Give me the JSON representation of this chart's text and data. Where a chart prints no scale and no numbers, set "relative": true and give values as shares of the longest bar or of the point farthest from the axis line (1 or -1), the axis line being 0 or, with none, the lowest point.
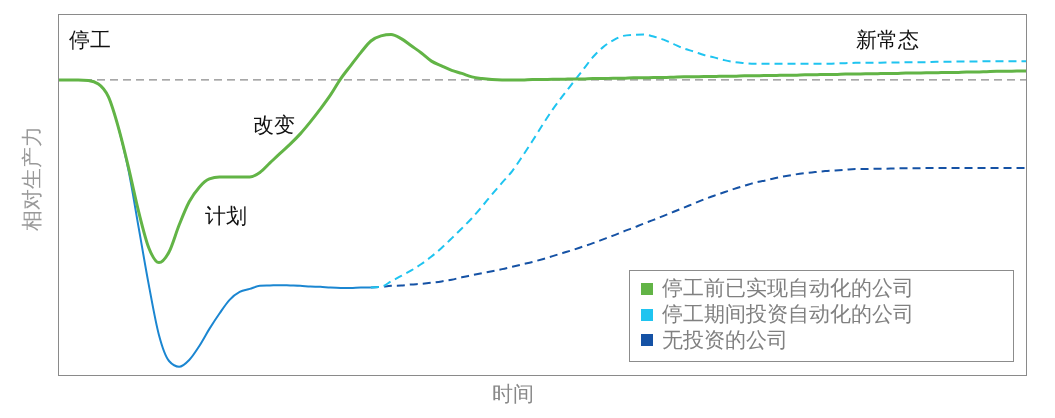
{
  "chart_data": {
    "type": "line",
    "relative": true,
    "xlabel": "时间",
    "ylabel": "相对生产力",
    "annotations": [
      "停工",
      "计划",
      "改变",
      "新常态"
    ],
    "categories": [
      null,
      null,
      null,
      null,
      null,
      null,
      null,
      null,
      null,
      null,
      null,
      null,
      null,
      null,
      null,
      null,
      null,
      null,
      null,
      null,
      null,
      null,
      null,
      null,
      null,
      null,
      null,
      null,
      null,
      null,
      null,
      null,
      null,
      null,
      null,
      null,
      null,
      null,
      null,
      null,
      null,
      null,
      null,
      null,
      null,
      null,
      null,
      null,
      null,
      null,
      null,
      null,
      null,
      null,
      null,
      null,
      null,
      null,
      null,
      null,
      null,
      null,
      null,
      null,
      null,
      null,
      null,
      null,
      null,
      null,
      null,
      null,
      null,
      null,
      null,
      null,
      null,
      null,
      null,
      null,
      null,
      null,
      null,
      null,
      null,
      null,
      null,
      null,
      null,
      null,
      null,
      null,
      null,
      null,
      null,
      null,
      null
    ],
    "series": [
      {
        "name": "停工前已实现自动化的公司",
        "color": "#62b446",
        "line_style": "solid",
        "values": [
          0.867,
          0.867,
          0.867,
          0.865,
          0.855,
          0.817,
          0.726,
          0.609,
          0.48,
          0.375,
          0.332,
          0.363,
          0.442,
          0.51,
          0.553,
          0.577,
          0.583,
          0.583,
          0.583,
          0.583,
          0.596,
          0.624,
          0.652,
          0.679,
          0.709,
          0.744,
          0.782,
          0.823,
          0.87,
          0.909,
          0.947,
          0.981,
          0.996,
          1.0,
          0.988,
          0.967,
          0.946,
          0.922,
          0.908,
          0.895,
          0.886,
          0.876,
          0.871,
          0.868,
          0.867,
          0.867,
          0.867,
          0.868,
          0.868,
          0.869,
          0.869,
          0.87,
          0.87,
          0.871,
          0.871,
          0.872,
          0.872,
          0.873,
          0.873,
          0.874,
          0.874,
          0.875,
          0.876,
          0.876,
          0.877,
          0.877,
          0.878,
          0.878,
          0.879,
          0.879,
          0.88,
          0.88,
          0.881,
          0.881,
          0.882,
          0.882,
          0.883,
          0.883,
          0.884,
          0.884,
          0.885,
          0.885,
          0.886,
          0.886,
          0.887,
          0.887,
          0.888,
          0.888,
          0.889,
          0.889,
          0.89,
          0.89,
          0.891,
          0.892,
          0.892,
          0.893,
          0.893
        ]
      },
      {
        "color": "#1b86d1",
        "line_style": "solid",
        "values": [
          null,
          null,
          null,
          null,
          null,
          null,
          0.726,
          0.6,
          0.433,
          0.266,
          0.12,
          0.044,
          0.027,
          0.047,
          0.088,
          0.138,
          0.183,
          0.223,
          0.246,
          0.255,
          0.264,
          0.265,
          0.266,
          0.265,
          0.264,
          0.262,
          0.261,
          0.259,
          0.258,
          0.258,
          0.259,
          0.259,
          null,
          null,
          null,
          null,
          null,
          null,
          null,
          null,
          null,
          null,
          null,
          null,
          null,
          null,
          null,
          null,
          null,
          null,
          null,
          null,
          null,
          null,
          null,
          null,
          null,
          null,
          null,
          null,
          null,
          null,
          null,
          null,
          null,
          null,
          null,
          null,
          null,
          null,
          null,
          null,
          null,
          null,
          null,
          null,
          null,
          null,
          null,
          null,
          null,
          null,
          null,
          null,
          null,
          null,
          null,
          null,
          null,
          null,
          null,
          null,
          null,
          null,
          null,
          null,
          null
        ]
      },
      {
        "name": "停工期间投资自动化的公司",
        "color": "#1fc4f0",
        "line_style": "dashed",
        "values": [
          null,
          null,
          null,
          null,
          null,
          null,
          null,
          null,
          null,
          null,
          null,
          null,
          null,
          null,
          null,
          null,
          null,
          null,
          null,
          null,
          null,
          null,
          null,
          null,
          null,
          null,
          null,
          null,
          null,
          null,
          null,
          0.259,
          0.261,
          0.277,
          0.293,
          0.309,
          0.328,
          0.35,
          0.375,
          0.403,
          0.432,
          0.462,
          0.496,
          0.532,
          0.566,
          0.6,
          0.643,
          0.688,
          0.735,
          0.78,
          0.82,
          0.858,
          0.896,
          0.934,
          0.963,
          0.983,
          0.996,
          0.999,
          1.0,
          0.994,
          0.985,
          0.972,
          0.959,
          0.95,
          0.94,
          0.933,
          0.925,
          0.919,
          0.916,
          0.914,
          0.914,
          0.914,
          0.914,
          0.914,
          0.914,
          0.914,
          0.914,
          0.915,
          0.916,
          0.917,
          0.917,
          0.917,
          0.918,
          0.918,
          0.919,
          0.919,
          0.919,
          0.92,
          0.92,
          0.921,
          0.921,
          0.921,
          0.922,
          0.922,
          0.922,
          0.922,
          0.922
        ]
      },
      {
        "name": "无投资的公司",
        "color": "#1552a5",
        "line_style": "dashed",
        "values": [
          null,
          null,
          null,
          null,
          null,
          null,
          null,
          null,
          null,
          null,
          null,
          null,
          null,
          null,
          null,
          null,
          null,
          null,
          null,
          null,
          null,
          null,
          null,
          null,
          null,
          null,
          null,
          null,
          null,
          null,
          null,
          0.259,
          0.261,
          0.264,
          0.265,
          0.268,
          0.27,
          0.273,
          0.277,
          0.282,
          0.289,
          0.295,
          0.301,
          0.307,
          0.313,
          0.32,
          0.327,
          0.334,
          0.342,
          0.351,
          0.36,
          0.369,
          0.379,
          0.389,
          0.4,
          0.411,
          0.423,
          0.434,
          0.446,
          0.457,
          0.469,
          0.481,
          0.493,
          0.505,
          0.517,
          0.528,
          0.538,
          0.548,
          0.557,
          0.566,
          0.572,
          0.579,
          0.585,
          0.59,
          0.594,
          0.597,
          0.6,
          0.602,
          0.604,
          0.606,
          0.606,
          0.607,
          0.607,
          0.608,
          0.608,
          0.608,
          0.609,
          0.609,
          0.609,
          0.609,
          0.609,
          0.609,
          0.609,
          0.609,
          0.609,
          0.609,
          0.609
        ]
      }
    ],
    "ref_lines": [
      {
        "axis": "y",
        "value": 0.867,
        "color": "#8a8a8a",
        "line_style": "dashed"
      }
    ],
    "legend": "bottom right"
  }
}
